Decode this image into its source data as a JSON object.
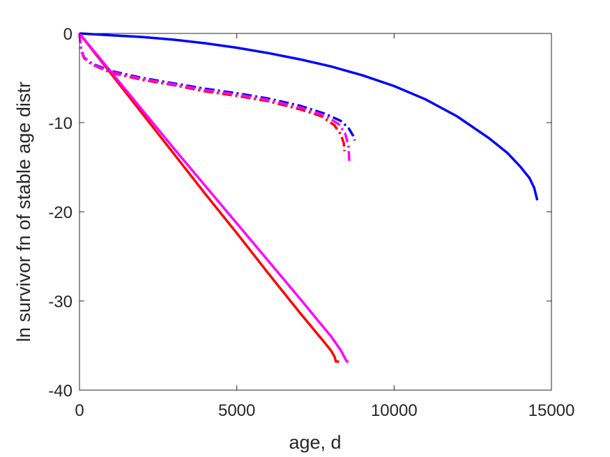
{
  "chart_data": {
    "type": "line",
    "title": "",
    "xlabel": "age, d",
    "ylabel": "ln survivor fn of stable age distr",
    "xlim": [
      0,
      15000
    ],
    "ylim": [
      -40,
      0
    ],
    "xticks": [
      0,
      5000,
      10000,
      15000
    ],
    "xtick_labels": [
      "0",
      "5000",
      "10000",
      "15000"
    ],
    "yticks": [
      0,
      -10,
      -20,
      -30,
      -40
    ],
    "ytick_labels": [
      "0",
      "-10",
      "-20",
      "-30",
      "-40"
    ],
    "grid": false,
    "legend": false,
    "series": [
      {
        "color": "#0000ff",
        "style": "solid",
        "points": [
          [
            0,
            0
          ],
          [
            1000,
            -0.2
          ],
          [
            2000,
            -0.4
          ],
          [
            3000,
            -0.7
          ],
          [
            4000,
            -1.1
          ],
          [
            5000,
            -1.6
          ],
          [
            6000,
            -2.2
          ],
          [
            7000,
            -2.9
          ],
          [
            8000,
            -3.7
          ],
          [
            9000,
            -4.7
          ],
          [
            10000,
            -5.9
          ],
          [
            11000,
            -7.4
          ],
          [
            12000,
            -9.3
          ],
          [
            13000,
            -11.7
          ],
          [
            13600,
            -13.4
          ],
          [
            14000,
            -14.9
          ],
          [
            14300,
            -16.2
          ],
          [
            14450,
            -17.3
          ],
          [
            14550,
            -18.7
          ]
        ]
      },
      {
        "color": "#ff0000",
        "style": "solid",
        "points": [
          [
            0,
            0
          ],
          [
            1000,
            -4.5
          ],
          [
            2000,
            -9.0
          ],
          [
            3000,
            -13.5
          ],
          [
            4000,
            -18.0
          ],
          [
            5000,
            -22.4
          ],
          [
            6000,
            -26.9
          ],
          [
            7000,
            -31.3
          ],
          [
            7800,
            -34.7
          ],
          [
            8000,
            -35.6
          ],
          [
            8100,
            -36.2
          ],
          [
            8150,
            -36.8
          ],
          [
            8250,
            -36.8
          ]
        ]
      },
      {
        "color": "#ff00ff",
        "style": "solid",
        "points": [
          [
            0,
            0
          ],
          [
            1000,
            -4.3
          ],
          [
            2000,
            -8.6
          ],
          [
            3000,
            -12.9
          ],
          [
            4000,
            -17.1
          ],
          [
            5000,
            -21.3
          ],
          [
            6000,
            -25.5
          ],
          [
            7000,
            -29.7
          ],
          [
            8000,
            -34.0
          ],
          [
            8300,
            -35.5
          ],
          [
            8450,
            -36.5
          ],
          [
            8500,
            -36.8
          ],
          [
            8550,
            -36.8
          ]
        ]
      },
      {
        "color": "#0000ff",
        "style": "dashdot",
        "points": [
          [
            0,
            0
          ],
          [
            50,
            -1.8
          ],
          [
            150,
            -2.7
          ],
          [
            400,
            -3.4
          ],
          [
            1000,
            -4.2
          ],
          [
            2000,
            -5.0
          ],
          [
            3000,
            -5.6
          ],
          [
            4000,
            -6.2
          ],
          [
            5000,
            -6.7
          ],
          [
            6000,
            -7.3
          ],
          [
            7000,
            -8.1
          ],
          [
            7800,
            -9.0
          ],
          [
            8300,
            -9.8
          ],
          [
            8550,
            -10.6
          ],
          [
            8700,
            -11.5
          ],
          [
            8750,
            -12.0
          ]
        ]
      },
      {
        "color": "#ff0000",
        "style": "dashdot",
        "points": [
          [
            0,
            0
          ],
          [
            50,
            -1.9
          ],
          [
            150,
            -2.8
          ],
          [
            400,
            -3.5
          ],
          [
            1000,
            -4.4
          ],
          [
            2000,
            -5.2
          ],
          [
            3000,
            -5.8
          ],
          [
            4000,
            -6.5
          ],
          [
            5000,
            -7.0
          ],
          [
            6000,
            -7.6
          ],
          [
            7000,
            -8.5
          ],
          [
            7700,
            -9.3
          ],
          [
            8100,
            -10.3
          ],
          [
            8300,
            -11.3
          ],
          [
            8400,
            -12.3
          ],
          [
            8420,
            -13.2
          ]
        ]
      },
      {
        "color": "#ff00ff",
        "style": "dashdot",
        "points": [
          [
            0,
            0
          ],
          [
            50,
            -1.85
          ],
          [
            150,
            -2.75
          ],
          [
            400,
            -3.45
          ],
          [
            1000,
            -4.3
          ],
          [
            2000,
            -5.1
          ],
          [
            3000,
            -5.7
          ],
          [
            4000,
            -6.35
          ],
          [
            5000,
            -6.85
          ],
          [
            6000,
            -7.45
          ],
          [
            7000,
            -8.3
          ],
          [
            7800,
            -9.2
          ],
          [
            8250,
            -10.2
          ],
          [
            8450,
            -11.3
          ],
          [
            8550,
            -12.6
          ],
          [
            8580,
            -14.5
          ]
        ]
      }
    ]
  }
}
